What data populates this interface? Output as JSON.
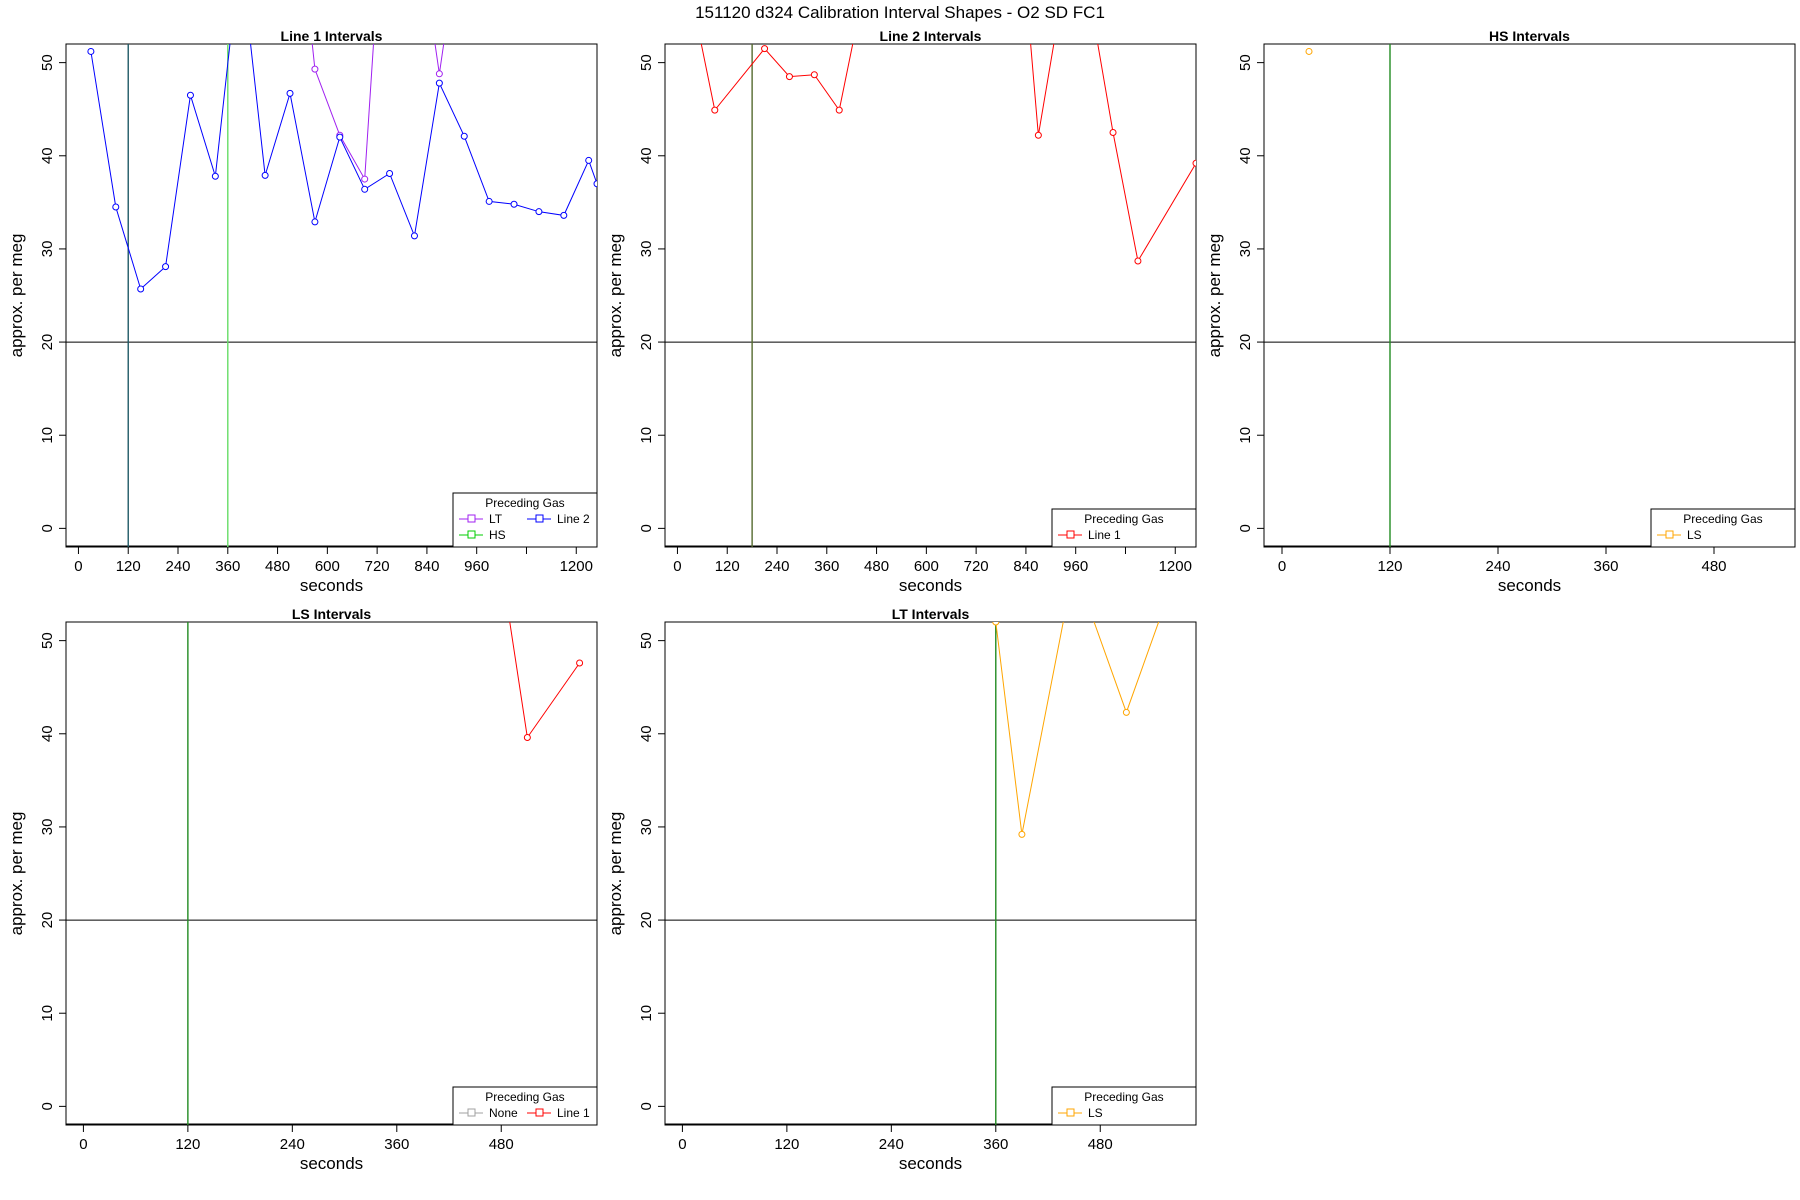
{
  "figure": {
    "title": "151120   d324   Calibration Interval Shapes - O2 SD FC1"
  },
  "colors": {
    "LT": "#a020f0",
    "HS": "#00cd00",
    "Line 2": "#0000ff",
    "Line 1": "#ff0000",
    "LS": "#ffa500",
    "None": "#a0a0a0",
    "hline": "#000000",
    "vline_dark": "#1f5a66",
    "vline_green": "#228b22",
    "vline_lightgreen": "#66dd66",
    "vline_olive": "#556b2f"
  },
  "chart_data": [
    {
      "type": "line",
      "title": "Line 1 Intervals",
      "xlabel": "seconds",
      "ylabel": "approx. per meg",
      "xlim": [
        -30,
        1250
      ],
      "ylim": [
        -2,
        52
      ],
      "xticks": [
        0,
        120,
        240,
        360,
        480,
        600,
        720,
        840,
        960,
        1080,
        1200
      ],
      "xticklabels": [
        "0",
        "120",
        "240",
        "360",
        "480",
        "600",
        "720",
        "840",
        "960",
        "",
        "1200"
      ],
      "yticks": [
        0,
        10,
        20,
        30,
        40,
        50
      ],
      "hline": 20,
      "vlines": [
        {
          "x": 120,
          "color": "vline_dark"
        },
        {
          "x": 360,
          "color": "vline_lightgreen"
        }
      ],
      "legend": {
        "title": "Preceding Gas",
        "position": "bottom-right",
        "columns": 2,
        "entries": [
          "LT",
          "HS",
          "Line 2"
        ]
      },
      "series": [
        {
          "name": "LT",
          "x": [
            540,
            570,
            630,
            690,
            720,
            840,
            870,
            900
          ],
          "y": [
            62,
            49.3,
            42.2,
            37.5,
            58,
            58,
            48.8,
            58
          ]
        },
        {
          "name": "HS",
          "x": [],
          "y": []
        },
        {
          "name": "Line 2",
          "x": [
            30,
            90,
            150,
            210,
            270,
            330,
            390,
            450,
            510,
            570,
            630,
            690,
            750,
            810,
            870,
            930,
            990,
            1050,
            1110,
            1170,
            1230,
            1250
          ],
          "y": [
            51.2,
            34.5,
            25.7,
            28.1,
            46.5,
            37.8,
            62,
            37.9,
            46.7,
            32.9,
            42.0,
            36.4,
            38.1,
            31.4,
            47.8,
            42.1,
            35.1,
            34.8,
            34.0,
            33.6,
            39.5,
            37
          ]
        }
      ]
    },
    {
      "type": "line",
      "title": "Line 2 Intervals",
      "xlabel": "seconds",
      "ylabel": "approx. per meg",
      "xlim": [
        -30,
        1250
      ],
      "ylim": [
        -2,
        52
      ],
      "xticks": [
        0,
        120,
        240,
        360,
        480,
        600,
        720,
        840,
        960,
        1080,
        1200
      ],
      "xticklabels": [
        "0",
        "120",
        "240",
        "360",
        "480",
        "600",
        "720",
        "840",
        "960",
        "",
        "1200"
      ],
      "yticks": [
        0,
        10,
        20,
        30,
        40,
        50
      ],
      "hline": 20,
      "vlines": [
        {
          "x": 180,
          "color": "vline_olive"
        }
      ],
      "legend": {
        "title": "Preceding Gas",
        "position": "bottom-right",
        "columns": 1,
        "entries": [
          "Line 1"
        ]
      },
      "series": [
        {
          "name": "Line 1",
          "x": [
            30,
            90,
            210,
            270,
            330,
            390,
            450,
            840,
            870,
            930,
            990,
            1050,
            1110,
            1250
          ],
          "y": [
            58,
            44.9,
            51.5,
            48.5,
            48.7,
            44.9,
            58,
            58,
            42.2,
            58,
            58,
            42.5,
            28.7,
            39.2
          ]
        }
      ]
    },
    {
      "type": "scatter",
      "title": "HS Intervals",
      "xlabel": "seconds",
      "ylabel": "approx. per meg",
      "xlim": [
        -20,
        570
      ],
      "ylim": [
        -2,
        52
      ],
      "xticks": [
        0,
        120,
        240,
        360,
        480
      ],
      "xticklabels": [
        "0",
        "120",
        "240",
        "360",
        "480"
      ],
      "yticks": [
        0,
        10,
        20,
        30,
        40,
        50
      ],
      "hline": 20,
      "vlines": [
        {
          "x": 120,
          "color": "vline_green"
        }
      ],
      "legend": {
        "title": "Preceding Gas",
        "position": "bottom-right",
        "columns": 1,
        "entries": [
          "LS"
        ]
      },
      "series": [
        {
          "name": "LS",
          "x": [
            30
          ],
          "y": [
            51.2
          ]
        }
      ]
    },
    {
      "type": "line",
      "title": "LS Intervals",
      "xlabel": "seconds",
      "ylabel": "approx. per meg",
      "xlim": [
        -20,
        590
      ],
      "ylim": [
        -2,
        52
      ],
      "xticks": [
        0,
        120,
        240,
        360,
        480
      ],
      "xticklabels": [
        "0",
        "120",
        "240",
        "360",
        "480"
      ],
      "yticks": [
        0,
        10,
        20,
        30,
        40,
        50
      ],
      "hline": 20,
      "vlines": [
        {
          "x": 120,
          "color": "vline_green"
        }
      ],
      "legend": {
        "title": "Preceding Gas",
        "position": "bottom-right",
        "columns": 2,
        "entries": [
          "None",
          "Line 1"
        ]
      },
      "series": [
        {
          "name": "None",
          "x": [],
          "y": []
        },
        {
          "name": "Line 1",
          "x": [
            480,
            510,
            570
          ],
          "y": [
            58,
            39.6,
            47.6
          ]
        }
      ]
    },
    {
      "type": "line",
      "title": "LT Intervals",
      "xlabel": "seconds",
      "ylabel": "approx. per meg",
      "xlim": [
        -20,
        590
      ],
      "ylim": [
        -2,
        52
      ],
      "xticks": [
        0,
        120,
        240,
        360,
        480
      ],
      "xticklabels": [
        "0",
        "120",
        "240",
        "360",
        "480"
      ],
      "yticks": [
        0,
        10,
        20,
        30,
        40,
        50
      ],
      "hline": 20,
      "vlines": [
        {
          "x": 360,
          "color": "vline_green"
        }
      ],
      "legend": {
        "title": "Preceding Gas",
        "position": "bottom-right",
        "columns": 1,
        "entries": [
          "LS"
        ]
      },
      "series": [
        {
          "name": "LS",
          "x": [
            360,
            390,
            450,
            510,
            570
          ],
          "y": [
            52,
            29.2,
            58,
            42.3,
            58
          ]
        }
      ]
    }
  ]
}
